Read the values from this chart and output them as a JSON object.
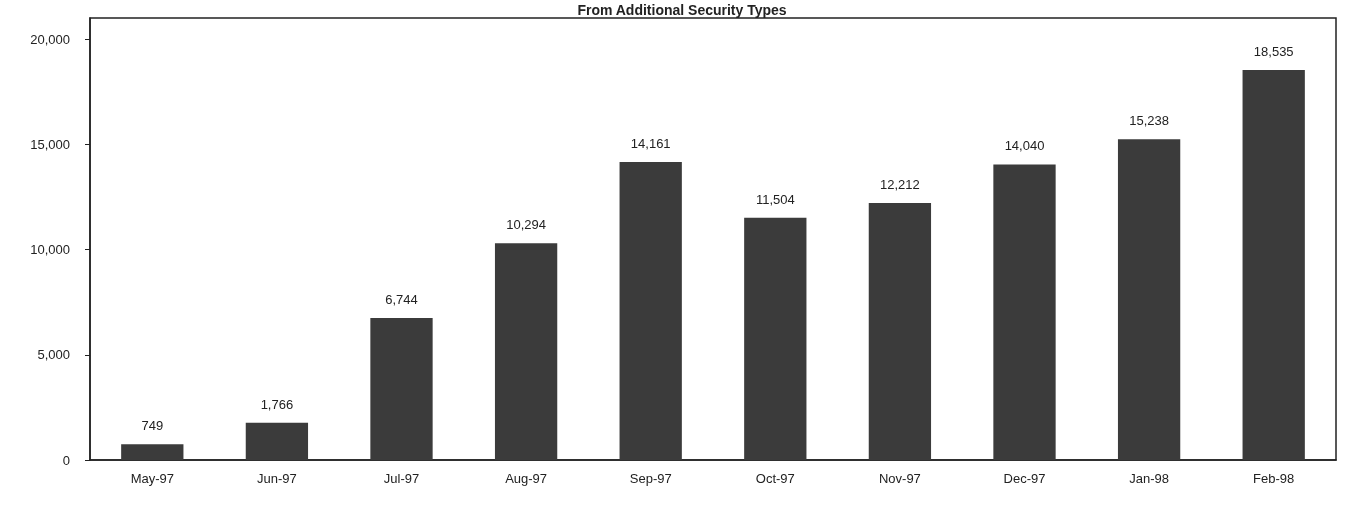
{
  "chart_data": {
    "type": "bar",
    "title": "From Additional Security Types",
    "categories": [
      "May-97",
      "Jun-97",
      "Jul-97",
      "Aug-97",
      "Sep-97",
      "Oct-97",
      "Nov-97",
      "Dec-97",
      "Jan-98",
      "Feb-98"
    ],
    "values": [
      749,
      1766,
      6744,
      10294,
      14161,
      11504,
      12212,
      14040,
      15238,
      18535
    ],
    "color": "#3b3b3b",
    "ylim": [
      0,
      21000
    ],
    "yticks": [
      0,
      {
        "value": 5000,
        "label": "5,000"
      },
      {
        "value": 10000,
        "label": "10,000"
      },
      {
        "value": 15000,
        "label": "15,000"
      },
      {
        "value": 20000,
        "label": "20,000"
      }
    ],
    "value_labels": [
      "749",
      "1,766",
      "6,744",
      "10,294",
      "14,161",
      "11,504",
      "12,212",
      "14,040",
      "15,238",
      "18,535"
    ],
    "grid": false
  }
}
